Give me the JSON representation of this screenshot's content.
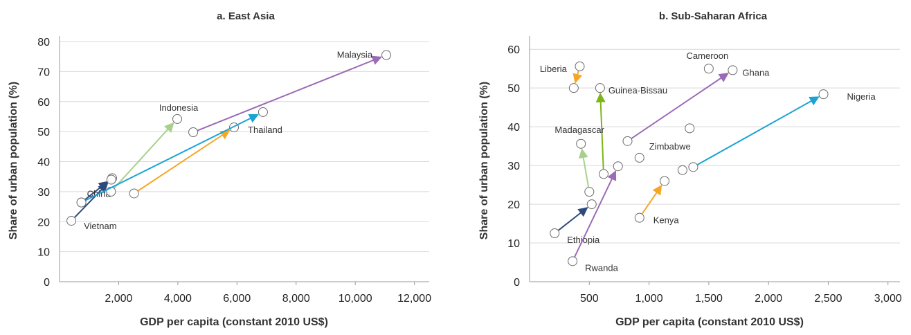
{
  "chart_data": [
    {
      "type": "scatter",
      "title": "a. East Asia",
      "xlabel": "GDP per capita (constant 2010 US$)",
      "ylabel": "Share of urban population (%)",
      "xlim": [
        0,
        12500
      ],
      "ylim": [
        0,
        80
      ],
      "xticks": [
        2000,
        4000,
        6000,
        8000,
        10000,
        12000
      ],
      "xtick_labels": [
        "2,000",
        "4,000",
        "6,000",
        "8,000",
        "10,000",
        "12,000"
      ],
      "yticks": [
        0,
        10,
        20,
        30,
        40,
        50,
        60,
        70,
        80
      ],
      "ytick_labels": [
        "0",
        "10",
        "20",
        "30",
        "40",
        "50",
        "60",
        "70",
        "80"
      ],
      "grid": true,
      "series": [
        {
          "name": "China",
          "label_anchor": "start",
          "color": "#2E4A7D",
          "from": [
            740,
            26.4
          ],
          "to": [
            1780,
            34.5
          ],
          "label_pos": [
            1700,
            30.5
          ],
          "label_side": "end"
        },
        {
          "name": "Vietnam",
          "label_anchor": "end",
          "color": "#2E4A7D",
          "from": [
            400,
            20.3
          ],
          "to": [
            1750,
            34.0
          ],
          "label_pos": [
            400,
            20.3
          ],
          "label_side": "right"
        },
        {
          "name": "Indonesia",
          "color": "#A8D08D",
          "from": [
            1740,
            30.0
          ],
          "to": [
            3980,
            54.2
          ],
          "label_pos": [
            3980,
            54.2
          ],
          "label_side": "above"
        },
        {
          "name": "Thailand",
          "color": "#F5A623",
          "from": [
            2520,
            29.4
          ],
          "to": [
            5900,
            51.4
          ],
          "label_pos": [
            5900,
            51.4
          ],
          "label_side": "right"
        },
        {
          "name": "",
          "color": "#1BA3D3",
          "from": [
            740,
            26.4
          ],
          "to": [
            6880,
            56.5
          ],
          "label_pos": null
        },
        {
          "name": "Malaysia",
          "color": "#9B6BB5",
          "from": [
            4520,
            49.8
          ],
          "to": [
            11050,
            75.5
          ],
          "label_pos": [
            11050,
            75.5
          ],
          "label_side": "left"
        }
      ]
    },
    {
      "type": "scatter",
      "title": "b. Sub-Saharan Africa",
      "xlabel": "GDP per capita (constant 2010 US$)",
      "ylabel": "Share of urban population (%)",
      "xlim": [
        0,
        3100
      ],
      "ylim": [
        0,
        62
      ],
      "xticks": [
        500,
        1000,
        1500,
        2000,
        2500,
        3000
      ],
      "xtick_labels": [
        "500",
        "1,000",
        "1,500",
        "2,000",
        "2,500",
        "3,000"
      ],
      "yticks": [
        0,
        10,
        20,
        30,
        40,
        50,
        60
      ],
      "ytick_labels": [
        "0",
        "10",
        "20",
        "30",
        "40",
        "50",
        "60"
      ],
      "grid": true,
      "series": [
        {
          "name": "Liberia",
          "color": "#F5A623",
          "from": [
            420,
            55.6
          ],
          "to": [
            370,
            50.0
          ]
        },
        {
          "name": "Guinea-Bissau",
          "color": "#7CB518",
          "from": [
            620,
            27.8
          ],
          "to": [
            590,
            50.0
          ]
        },
        {
          "name": "Madagascar",
          "color": "#A8D08D",
          "from": [
            500,
            23.2
          ],
          "to": [
            430,
            35.6
          ]
        },
        {
          "name": "Ethiopia",
          "color": "#2E4A7D",
          "from": [
            210,
            12.5
          ],
          "to": [
            520,
            20.0
          ]
        },
        {
          "name": "Rwanda",
          "color": "#9B6BB5",
          "from": [
            360,
            5.3
          ],
          "to": [
            740,
            29.8
          ]
        },
        {
          "name": "Kenya",
          "color": "#F5A623",
          "from": [
            920,
            16.5
          ],
          "to": [
            1130,
            26.0
          ]
        },
        {
          "name": "Ghana",
          "color": "#9B6BB5",
          "from": [
            820,
            36.3
          ],
          "to": [
            1700,
            54.6
          ]
        },
        {
          "name": "Nigeria",
          "color": "#1BA3D3",
          "from": [
            1370,
            29.6
          ],
          "to": [
            2460,
            48.4
          ]
        }
      ],
      "extra_points": [
        {
          "name": "Cameroon",
          "x": 1500,
          "y": 55.0
        },
        {
          "name": "Zimbabwe",
          "x": 920,
          "y": 32.0
        },
        {
          "name": "",
          "x": 1340,
          "y": 39.6
        },
        {
          "name": "",
          "x": 1280,
          "y": 28.8
        }
      ]
    }
  ]
}
